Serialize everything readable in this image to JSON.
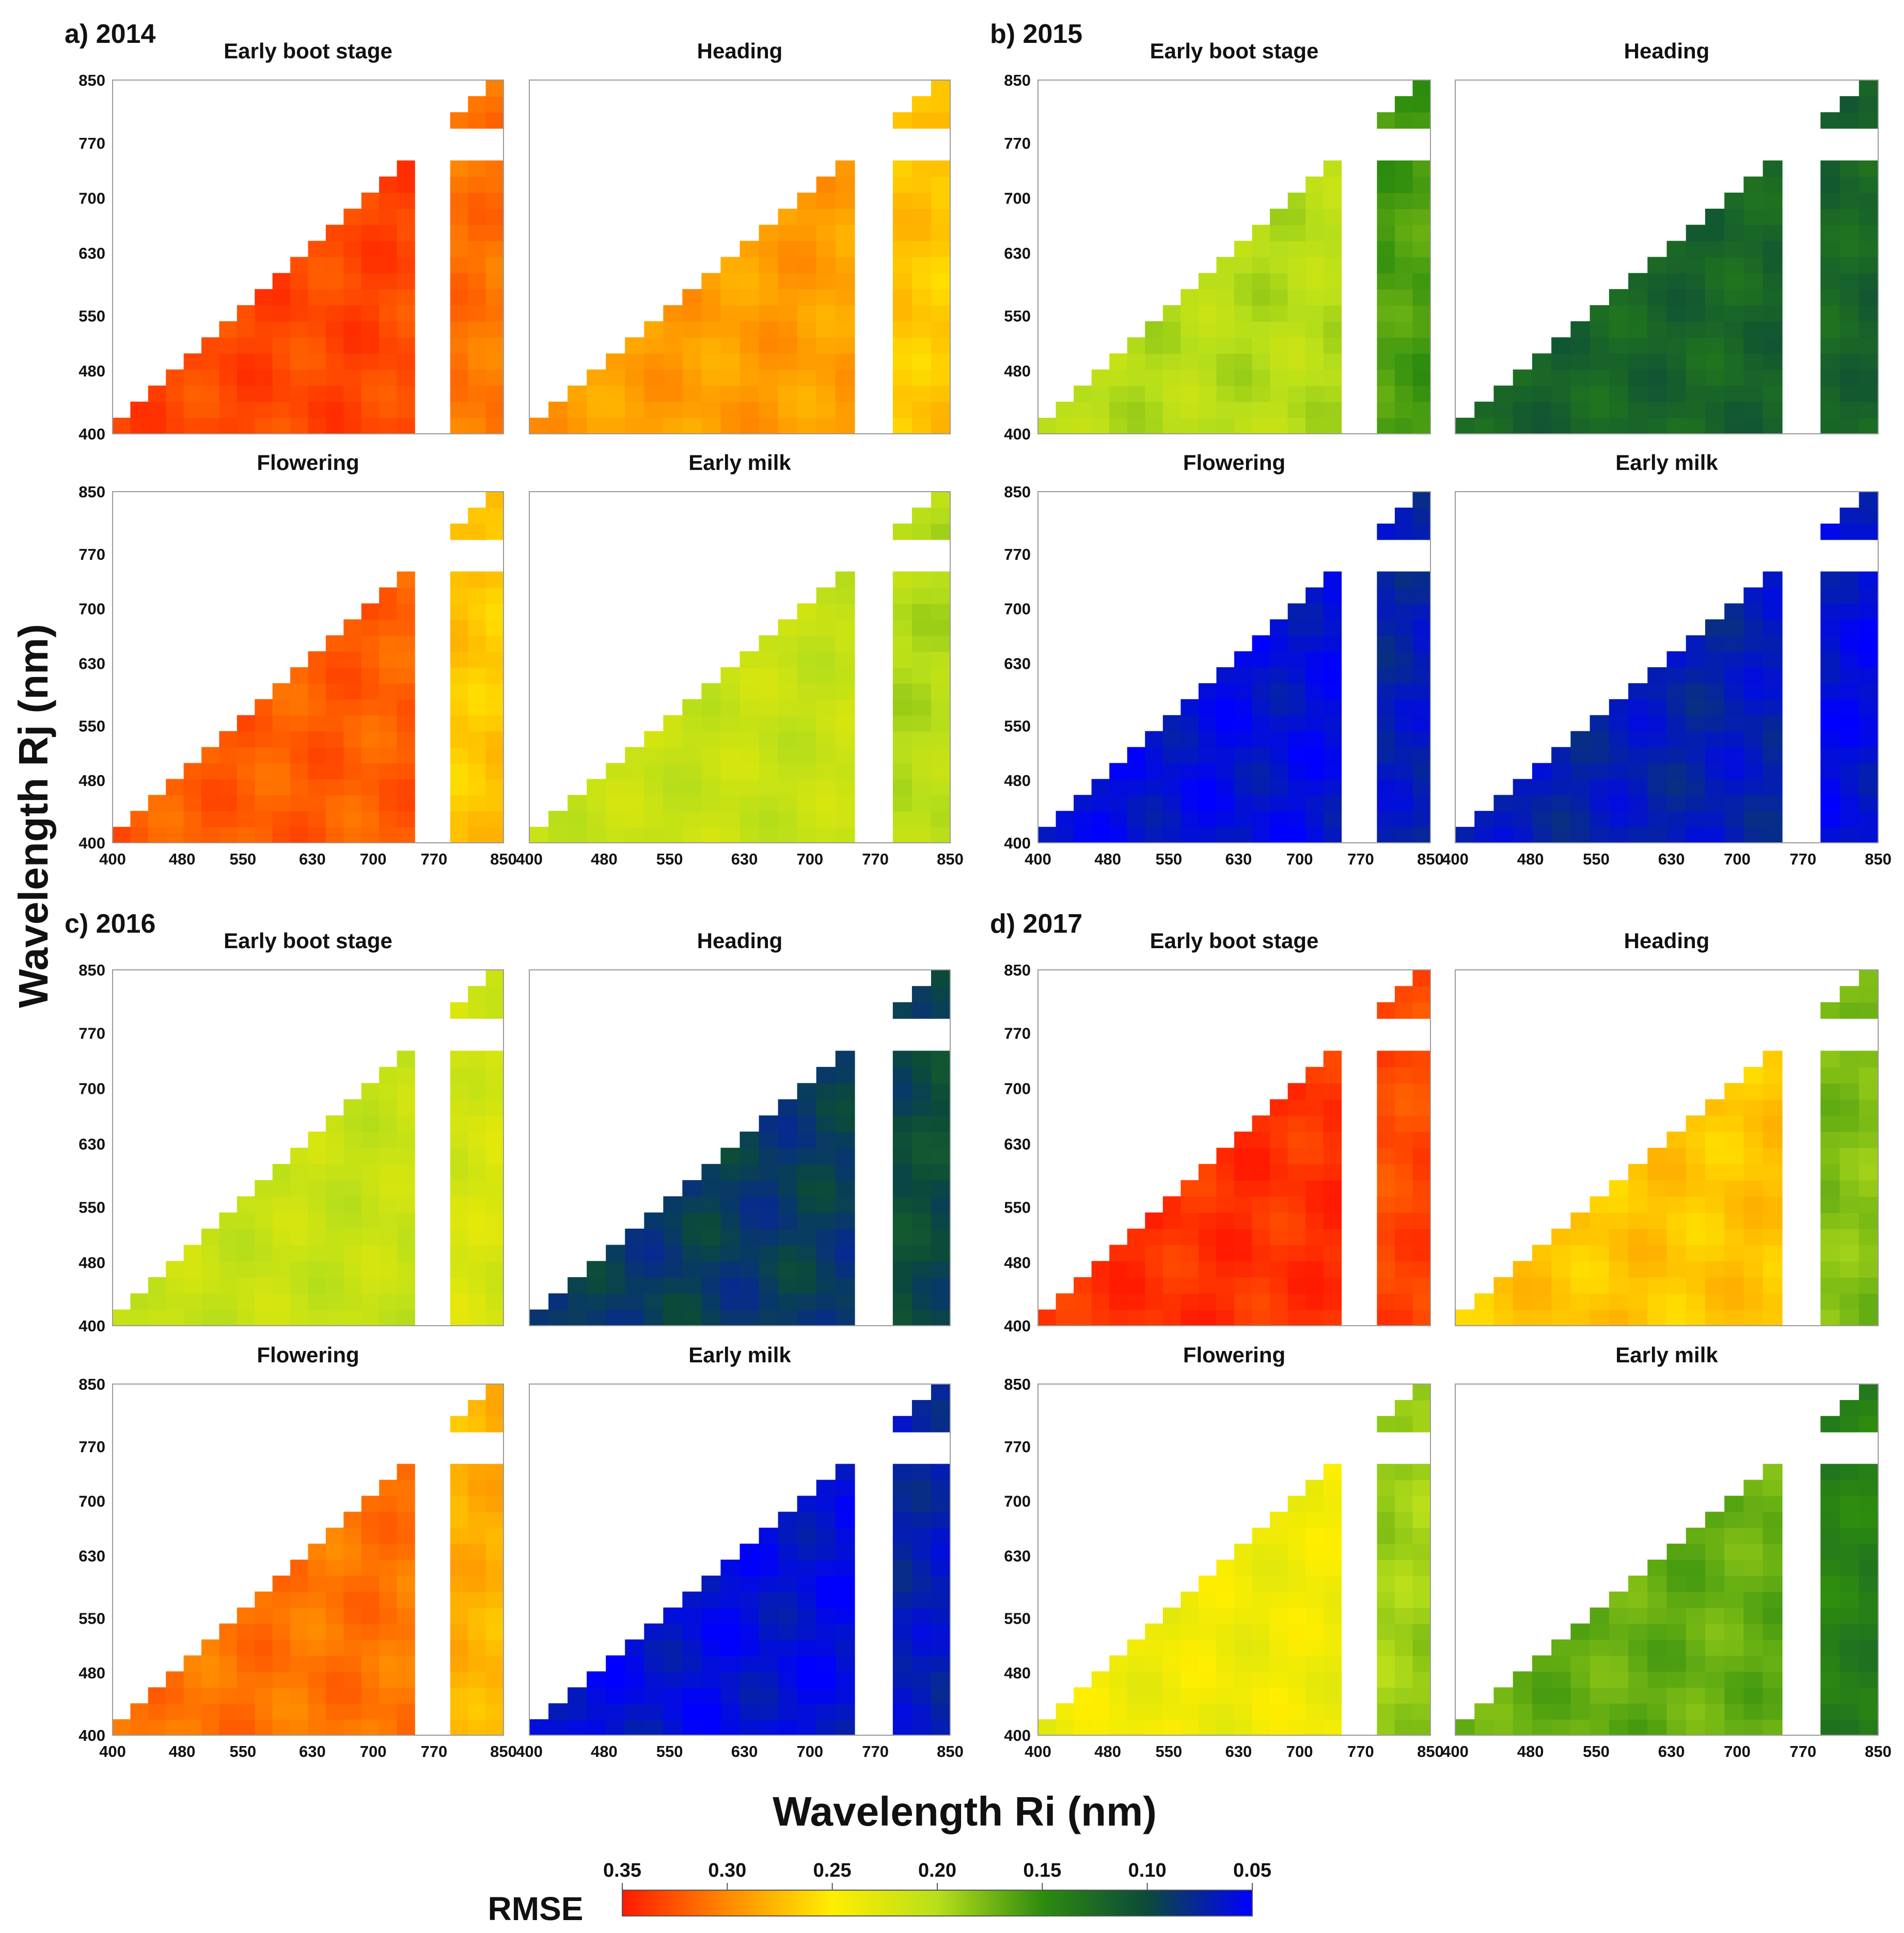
{
  "chart_data": {
    "type": "heatmap",
    "description_fields": {
      "x_axis_label": "Wavelength Ri (nm)",
      "y_axis_label": "Wavelength Rj (nm)",
      "x_ticks": [
        "400",
        "480",
        "550",
        "630",
        "700",
        "770",
        "850"
      ],
      "y_ticks": [
        "400",
        "480",
        "550",
        "630",
        "700",
        "770",
        "850"
      ],
      "axis_range_nm": [
        400,
        850
      ],
      "colorbar_label": "RMSE",
      "colorbar_ticks": [
        "0.35",
        "0.30",
        "0.25",
        "0.20",
        "0.15",
        "0.10",
        "0.05"
      ],
      "colorbar_range": [
        0.35,
        0.05
      ],
      "colorbar_stops": [
        {
          "value": 0.35,
          "color": "#ff1a00"
        },
        {
          "value": 0.3,
          "color": "#ff8a00"
        },
        {
          "value": 0.25,
          "color": "#ffee00"
        },
        {
          "value": 0.2,
          "color": "#b8df1a"
        },
        {
          "value": 0.15,
          "color": "#2d8c0e"
        },
        {
          "value": 0.1,
          "color": "#0b4a3a"
        },
        {
          "value": 0.05,
          "color": "#0000ff"
        }
      ],
      "masked_band_nm": [
        750,
        780
      ]
    },
    "groups": [
      {
        "label": "a) 2014",
        "panels": [
          {
            "title": "Early boot stage",
            "typical_rmse": 0.33,
            "row_band_rmse": 0.31
          },
          {
            "title": "Heading",
            "typical_rmse": 0.29,
            "row_band_rmse": 0.27
          },
          {
            "title": "Flowering",
            "typical_rmse": 0.32,
            "row_band_rmse": 0.27
          },
          {
            "title": "Early milk",
            "typical_rmse": 0.21,
            "row_band_rmse": 0.2
          }
        ]
      },
      {
        "label": "b) 2015",
        "panels": [
          {
            "title": "Early boot stage",
            "typical_rmse": 0.2,
            "row_band_rmse": 0.16
          },
          {
            "title": "Heading",
            "typical_rmse": 0.12,
            "row_band_rmse": 0.12
          },
          {
            "title": "Flowering",
            "typical_rmse": 0.06,
            "row_band_rmse": 0.07
          },
          {
            "title": "Early milk",
            "typical_rmse": 0.07,
            "row_band_rmse": 0.06
          }
        ]
      },
      {
        "label": "c) 2016",
        "panels": [
          {
            "title": "Early boot stage",
            "typical_rmse": 0.21,
            "row_band_rmse": 0.22
          },
          {
            "title": "Heading",
            "typical_rmse": 0.09,
            "row_band_rmse": 0.1
          },
          {
            "title": "Flowering",
            "typical_rmse": 0.31,
            "row_band_rmse": 0.28
          },
          {
            "title": "Early milk",
            "typical_rmse": 0.06,
            "row_band_rmse": 0.07
          }
        ]
      },
      {
        "label": "d) 2017",
        "panels": [
          {
            "title": "Early boot stage",
            "typical_rmse": 0.34,
            "row_band_rmse": 0.33
          },
          {
            "title": "Heading",
            "typical_rmse": 0.27,
            "row_band_rmse": 0.18
          },
          {
            "title": "Flowering",
            "typical_rmse": 0.24,
            "row_band_rmse": 0.19
          },
          {
            "title": "Early milk",
            "typical_rmse": 0.17,
            "row_band_rmse": 0.14
          }
        ]
      }
    ]
  }
}
